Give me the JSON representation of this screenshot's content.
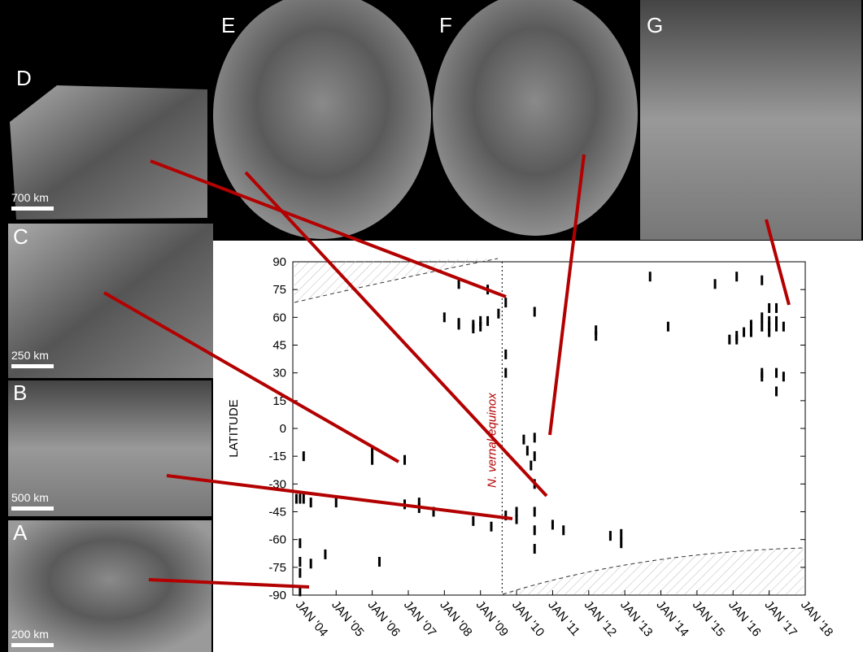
{
  "chart_data": {
    "type": "scatter",
    "y_label": "LATITUDE",
    "annotation": "N. vernal equinox",
    "annotation_x": 2009.6,
    "color": "#000000",
    "x": [
      2004.0,
      2004.0,
      2004.0,
      2004.0,
      2004.0,
      2003.9,
      2004.1,
      2004.1,
      2004.3,
      2004.3,
      2004.7,
      2005.0,
      2006.0,
      2006.0,
      2006.2,
      2006.9,
      2006.9,
      2007.3,
      2007.3,
      2007.7,
      2008.0,
      2008.4,
      2008.4,
      2008.4,
      2008.8,
      2008.8,
      2009.0,
      2009.0,
      2009.2,
      2009.2,
      2009.5,
      2009.7,
      2009.7,
      2009.7,
      2009.7,
      2008.8,
      2009.3,
      2010.0,
      2010.0,
      2010.2,
      2010.3,
      2010.4,
      2010.5,
      2010.5,
      2010.5,
      2010.5,
      2010.5,
      2010.5,
      2010.5,
      2011.0,
      2011.3,
      2012.2,
      2012.2,
      2012.6,
      2012.9,
      2012.9,
      2013.7,
      2014.2,
      2015.5,
      2015.9,
      2016.1,
      2016.1,
      2016.1,
      2016.3,
      2016.5,
      2016.5,
      2016.8,
      2016.8,
      2016.8,
      2016.8,
      2016.8,
      2017.0,
      2017.0,
      2017.0,
      2017.0,
      2017.2,
      2017.2,
      2017.2,
      2017.2,
      2017.2,
      2017.4,
      2017.4
    ],
    "values": [
      -88,
      -78,
      -72,
      -62,
      -38,
      -38,
      -15,
      -38,
      -73,
      -40,
      -68,
      -40,
      -12,
      -17,
      -72,
      -17,
      -41,
      -40,
      -43,
      -45,
      60,
      57,
      56,
      78,
      56,
      54,
      55,
      58,
      75,
      58,
      62,
      68,
      40,
      30,
      -47,
      -50,
      -53,
      -49,
      -45,
      -6,
      -12,
      -20,
      63,
      -5,
      -15,
      -30,
      -45,
      -55,
      -65,
      -52,
      -55,
      50,
      53,
      -58,
      -57,
      -62,
      82,
      55,
      78,
      48,
      50,
      82,
      48,
      52,
      56,
      52,
      80,
      60,
      55,
      30,
      28,
      65,
      58,
      52,
      55,
      65,
      58,
      55,
      30,
      20,
      55,
      28
    ],
    "xlim": [
      2003.8,
      2018.0
    ],
    "ylim": [
      -90,
      90
    ],
    "yticks": [
      90,
      75,
      60,
      45,
      30,
      15,
      0,
      -15,
      -30,
      -45,
      -60,
      -75,
      -90
    ],
    "xticks": [
      {
        "value": 2004,
        "label": "JAN '04"
      },
      {
        "value": 2005,
        "label": "JAN '05"
      },
      {
        "value": 2006,
        "label": "JAN '06"
      },
      {
        "value": 2007,
        "label": "JAN '07"
      },
      {
        "value": 2008,
        "label": "JAN '08"
      },
      {
        "value": 2009,
        "label": "JAN '09"
      },
      {
        "value": 2010,
        "label": "JAN '10"
      },
      {
        "value": 2011,
        "label": "JAN '11"
      },
      {
        "value": 2012,
        "label": "JAN '12"
      },
      {
        "value": 2013,
        "label": "JAN '13"
      },
      {
        "value": 2014,
        "label": "JAN '14"
      },
      {
        "value": 2015,
        "label": "JAN '15"
      },
      {
        "value": 2016,
        "label": "JAN '16"
      },
      {
        "value": 2017,
        "label": "JAN '17"
      },
      {
        "value": 2018,
        "label": "JAN '18"
      }
    ]
  },
  "panels": [
    {
      "label": "D",
      "scale": "700 km"
    },
    {
      "label": "E"
    },
    {
      "label": "F"
    },
    {
      "label": "G"
    },
    {
      "label": "C",
      "scale": "250 km"
    },
    {
      "label": "B",
      "scale": "500 km"
    },
    {
      "label": "A",
      "scale": "200 km"
    }
  ]
}
